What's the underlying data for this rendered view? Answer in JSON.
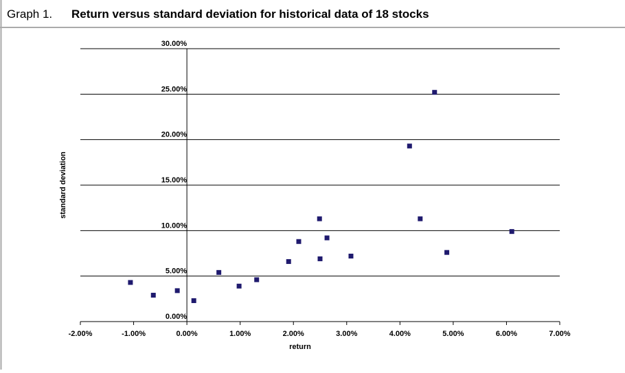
{
  "caption_label": "Graph 1.",
  "chart_data": {
    "type": "scatter",
    "title": "Return versus standard deviation for historical data of 18 stocks",
    "x_label": "return",
    "y_label": "standard deviation",
    "color": "#1f1a6e",
    "grid": true,
    "x": [
      -1.06,
      -0.63,
      -0.18,
      0.13,
      0.6,
      0.98,
      1.31,
      1.91,
      2.1,
      2.49,
      2.5,
      2.63,
      3.08,
      4.18,
      4.65,
      4.38,
      4.88,
      6.1
    ],
    "y": [
      4.3,
      2.9,
      3.4,
      2.3,
      5.4,
      3.9,
      4.6,
      6.6,
      8.8,
      11.3,
      6.9,
      9.2,
      7.2,
      19.3,
      25.2,
      11.3,
      7.6,
      9.9
    ],
    "xlim": [
      -2,
      7
    ],
    "xticks": [
      {
        "value": -2,
        "label": "-2.00%"
      },
      {
        "value": -1,
        "label": "-1.00%"
      },
      {
        "value": 0,
        "label": "0.00%"
      },
      {
        "value": 1,
        "label": "1.00%"
      },
      {
        "value": 2,
        "label": "2.00%"
      },
      {
        "value": 3,
        "label": "3.00%"
      },
      {
        "value": 4,
        "label": "4.00%"
      },
      {
        "value": 5,
        "label": "5.00%"
      },
      {
        "value": 6,
        "label": "6.00%"
      },
      {
        "value": 7,
        "label": "7.00%"
      }
    ],
    "ylim": [
      0,
      30
    ],
    "yticks": [
      {
        "value": 0,
        "label": "0.00%"
      },
      {
        "value": 5,
        "label": "5.00%"
      },
      {
        "value": 10,
        "label": "10.00%"
      },
      {
        "value": 15,
        "label": "15.00%"
      },
      {
        "value": 20,
        "label": "20.00%"
      },
      {
        "value": 25,
        "label": "25.00%"
      },
      {
        "value": 30,
        "label": "30.00%"
      }
    ]
  }
}
